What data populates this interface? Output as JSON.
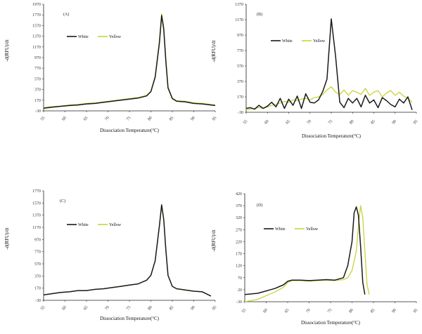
{
  "chart_data": [
    {
      "panel": "(A)",
      "type": "line",
      "xlabel": "Dissociation Temperature(°C)",
      "ylabel": "-d(RFU)/dt",
      "xlim": [
        55,
        95
      ],
      "ylim": [
        -30,
        1970
      ],
      "yticks": [
        -30,
        170,
        370,
        570,
        770,
        970,
        1170,
        1370,
        1570,
        1770,
        1970
      ],
      "xtick_labels": [
        "55",
        "60",
        "65",
        "70",
        "75",
        "80",
        "85",
        "90",
        "95"
      ],
      "legend": "top-left",
      "series": [
        {
          "name": "White",
          "color": "#1a1a1a",
          "x": [
            55,
            57,
            59,
            61,
            63,
            65,
            67,
            69,
            71,
            73,
            75,
            77,
            79,
            80,
            81,
            82,
            82.5,
            83,
            83.5,
            84,
            85,
            86,
            88,
            90,
            92,
            95
          ],
          "y": [
            20,
            40,
            55,
            70,
            80,
            100,
            110,
            130,
            150,
            170,
            190,
            210,
            250,
            330,
            600,
            1250,
            1760,
            1500,
            900,
            400,
            200,
            150,
            140,
            110,
            100,
            70
          ]
        },
        {
          "name": "Yellow",
          "color": "#c8d43a",
          "x": [
            55,
            57,
            59,
            61,
            63,
            65,
            67,
            69,
            71,
            73,
            75,
            77,
            79,
            80,
            81,
            82,
            82.5,
            83,
            83.5,
            84,
            85,
            86,
            88,
            90,
            92,
            95
          ],
          "y": [
            30,
            50,
            60,
            80,
            90,
            110,
            120,
            140,
            160,
            180,
            200,
            220,
            260,
            340,
            620,
            1300,
            1790,
            1550,
            950,
            420,
            210,
            160,
            150,
            120,
            110,
            80
          ]
        }
      ]
    },
    {
      "panel": "(B)",
      "type": "line",
      "xlabel": "Dissociation Temperature(°C)",
      "ylabel": "-d(RFU)/dt",
      "xlim": [
        55,
        95
      ],
      "ylim": [
        -30,
        1370
      ],
      "yticks": [
        -30,
        170,
        370,
        570,
        770,
        970,
        1170,
        1370
      ],
      "xtick_labels": [
        "55",
        "60",
        "65",
        "70",
        "75",
        "80",
        "85",
        "90",
        "95"
      ],
      "legend": "top-left",
      "series": [
        {
          "name": "White",
          "color": "#1a1a1a",
          "x": [
            55,
            56,
            57,
            58,
            59,
            60,
            61,
            62,
            63,
            64,
            65,
            66,
            67,
            68,
            69,
            70,
            71,
            72,
            73,
            74,
            75,
            76,
            77,
            78,
            79,
            80,
            81,
            82,
            83,
            84,
            85,
            86,
            87,
            88,
            89,
            90,
            91,
            92,
            93,
            94
          ],
          "y": [
            20,
            30,
            10,
            60,
            20,
            50,
            100,
            40,
            150,
            20,
            140,
            60,
            180,
            20,
            210,
            100,
            90,
            130,
            240,
            400,
            1180,
            700,
            100,
            30,
            150,
            90,
            150,
            40,
            190,
            90,
            130,
            30,
            160,
            120,
            70,
            40,
            140,
            90,
            170,
            0
          ]
        },
        {
          "name": "Yellow",
          "color": "#c8d43a",
          "x": [
            55,
            56,
            57,
            58,
            59,
            60,
            61,
            62,
            63,
            64,
            65,
            66,
            67,
            68,
            69,
            70,
            71,
            72,
            73,
            74,
            75,
            76,
            77,
            78,
            79,
            80,
            81,
            82,
            83,
            84,
            85,
            86,
            87,
            88,
            89,
            90,
            91,
            92,
            93,
            94
          ],
          "y": [
            0,
            10,
            20,
            30,
            20,
            40,
            60,
            70,
            90,
            110,
            100,
            130,
            120,
            140,
            150,
            130,
            160,
            170,
            200,
            260,
            300,
            230,
            200,
            260,
            190,
            250,
            230,
            200,
            280,
            190,
            230,
            250,
            170,
            220,
            250,
            190,
            230,
            180,
            150,
            100
          ]
        }
      ]
    },
    {
      "panel": "(C)",
      "type": "line",
      "xlabel": "Dissociation Temperature(°C)",
      "ylabel": "-d(RFU)/dt",
      "xlim": [
        55,
        95
      ],
      "ylim": [
        -30,
        1770
      ],
      "yticks": [
        -30,
        170,
        370,
        570,
        770,
        970,
        1170,
        1370,
        1570,
        1770
      ],
      "xtick_labels": [
        "55",
        "60",
        "65",
        "70",
        "75",
        "80",
        "85",
        "90",
        "95"
      ],
      "legend": "top-left",
      "series": [
        {
          "name": "White",
          "color": "#1a1a1a",
          "x": [
            55,
            57,
            59,
            61,
            63,
            65,
            67,
            69,
            71,
            73,
            75,
            77,
            79,
            80,
            81,
            82,
            82.5,
            83,
            83.5,
            84,
            85,
            86,
            88,
            90,
            92,
            94
          ],
          "y": [
            60,
            80,
            100,
            110,
            130,
            130,
            150,
            160,
            180,
            200,
            220,
            240,
            300,
            380,
            620,
            1200,
            1540,
            1300,
            800,
            380,
            200,
            160,
            140,
            120,
            110,
            40
          ]
        },
        {
          "name": "Yellow",
          "color": "#c8d43a",
          "x": [
            55,
            57,
            59,
            61,
            63,
            65,
            67,
            69,
            71,
            73,
            75,
            77,
            79,
            80,
            81,
            82,
            82.5,
            83,
            83.5,
            84,
            85,
            86,
            88,
            90,
            92,
            94
          ],
          "y": [
            60,
            80,
            100,
            110,
            130,
            130,
            150,
            160,
            180,
            200,
            220,
            240,
            300,
            380,
            620,
            1200,
            1540,
            1300,
            800,
            380,
            200,
            160,
            140,
            120,
            110,
            40
          ]
        }
      ]
    },
    {
      "panel": "(D)",
      "type": "line",
      "xlabel": "Dissociation Temperature(°C)",
      "ylabel": "-d(RFU)/dt",
      "xlim": [
        55,
        95
      ],
      "ylim": [
        -30,
        420
      ],
      "yticks": [
        -30,
        20,
        70,
        120,
        170,
        220,
        270,
        320,
        370,
        420
      ],
      "xtick_labels": [
        "55",
        "60",
        "65",
        "70",
        "75",
        "80",
        "85",
        "90",
        "95"
      ],
      "legend": "top-left",
      "series": [
        {
          "name": "White",
          "color": "#1a1a1a",
          "x": [
            55,
            58,
            60,
            62,
            64,
            65,
            66,
            68,
            70,
            72,
            74,
            76,
            78,
            79,
            80,
            80.5,
            81,
            81.5,
            82,
            82.5,
            83
          ],
          "y": [
            0,
            5,
            15,
            25,
            40,
            55,
            60,
            60,
            58,
            60,
            62,
            60,
            70,
            120,
            220,
            340,
            365,
            330,
            200,
            50,
            0
          ]
        },
        {
          "name": "Yellow",
          "color": "#c8d43a",
          "x": [
            55,
            58,
            60,
            62,
            64,
            65,
            66,
            68,
            70,
            72,
            74,
            76,
            78,
            79,
            80,
            81,
            81.5,
            82,
            82.5,
            83,
            83.5,
            84
          ],
          "y": [
            -30,
            -20,
            -5,
            10,
            30,
            50,
            58,
            58,
            56,
            58,
            60,
            58,
            62,
            70,
            100,
            180,
            290,
            370,
            320,
            180,
            40,
            0
          ]
        }
      ]
    }
  ]
}
